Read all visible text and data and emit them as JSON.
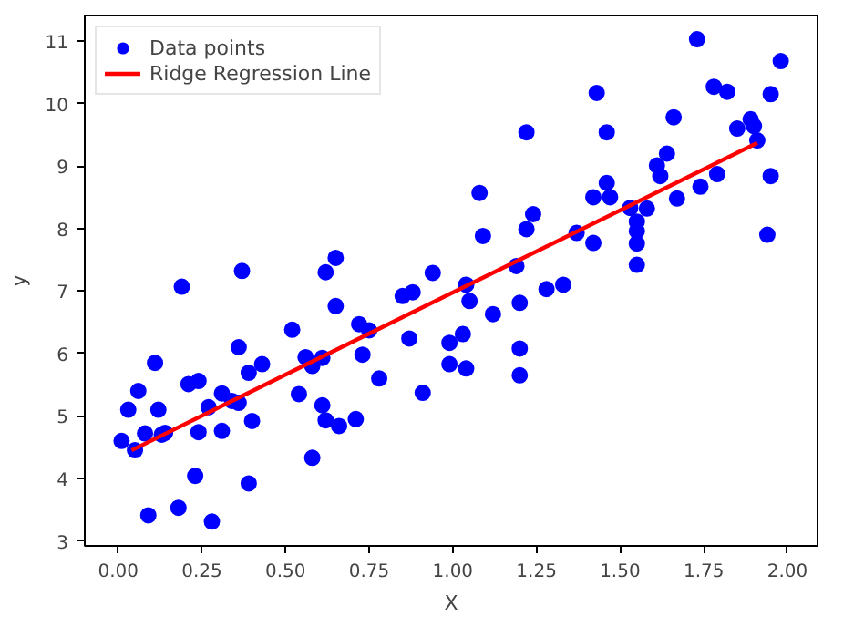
{
  "chart_data": {
    "type": "scatter",
    "xlabel": "X",
    "ylabel": "y",
    "xlim": [
      -0.1,
      2.09
    ],
    "ylim": [
      2.92,
      11.41
    ],
    "xticks": [
      {
        "value": 0,
        "label": "0.00"
      },
      {
        "value": 0.25,
        "label": "0.25"
      },
      {
        "value": 0.5,
        "label": "0.50"
      },
      {
        "value": 0.75,
        "label": "0.75"
      },
      {
        "value": 1,
        "label": "1.00"
      },
      {
        "value": 1.25,
        "label": "1.25"
      },
      {
        "value": 1.5,
        "label": "1.50"
      },
      {
        "value": 1.75,
        "label": "1.75"
      },
      {
        "value": 2,
        "label": "2.00"
      }
    ],
    "yticks": [
      3,
      4,
      5,
      6,
      7,
      8,
      9,
      10,
      11
    ],
    "legend": "top left",
    "grid": false,
    "series": [
      {
        "name": "Data points",
        "marker": "circle",
        "color": "#0000ff",
        "x": [
          0.01,
          0.03,
          0.05,
          0.06,
          0.08,
          0.09,
          0.11,
          0.12,
          0.13,
          0.14,
          0.18,
          0.19,
          0.21,
          0.23,
          0.24,
          0.24,
          0.27,
          0.28,
          0.31,
          0.31,
          0.34,
          0.36,
          0.36,
          0.37,
          0.39,
          0.39,
          0.4,
          0.43,
          0.52,
          0.54,
          0.56,
          0.58,
          0.58,
          0.61,
          0.61,
          0.62,
          0.62,
          0.65,
          0.65,
          0.66,
          0.71,
          0.72,
          0.73,
          0.75,
          0.78,
          0.85,
          0.87,
          0.88,
          0.91,
          0.94,
          0.99,
          0.99,
          1.03,
          1.04,
          1.04,
          1.05,
          1.08,
          1.09,
          1.12,
          1.19,
          1.2,
          1.2,
          1.2,
          1.22,
          1.22,
          1.24,
          1.28,
          1.33,
          1.37,
          1.42,
          1.42,
          1.43,
          1.46,
          1.46,
          1.47,
          1.53,
          1.55,
          1.55,
          1.55,
          1.55,
          1.58,
          1.61,
          1.62,
          1.64,
          1.66,
          1.67,
          1.73,
          1.74,
          1.78,
          1.79,
          1.82,
          1.85,
          1.89,
          1.9,
          1.91,
          1.94,
          1.95,
          1.95,
          1.98
        ],
        "values": [
          4.6,
          5.1,
          4.45,
          5.4,
          4.72,
          3.41,
          5.85,
          5.1,
          4.7,
          4.73,
          3.53,
          7.07,
          5.51,
          4.04,
          5.56,
          4.74,
          5.14,
          3.31,
          5.36,
          4.76,
          5.24,
          5.21,
          6.1,
          7.32,
          5.69,
          3.92,
          4.92,
          5.83,
          6.38,
          5.35,
          5.94,
          5.8,
          4.33,
          5.93,
          5.17,
          4.93,
          7.3,
          6.76,
          7.53,
          4.84,
          4.95,
          6.47,
          5.98,
          6.37,
          5.6,
          6.92,
          6.24,
          6.98,
          5.37,
          7.29,
          6.17,
          5.83,
          6.31,
          5.76,
          7.1,
          6.84,
          8.57,
          7.88,
          6.63,
          7.4,
          6.81,
          6.08,
          5.65,
          9.54,
          7.99,
          8.23,
          7.03,
          7.1,
          7.93,
          7.77,
          8.5,
          10.17,
          8.73,
          9.54,
          8.5,
          8.33,
          7.96,
          7.76,
          7.42,
          8.11,
          8.32,
          9.01,
          8.84,
          9.2,
          9.78,
          8.48,
          11.03,
          8.67,
          10.27,
          8.87,
          10.19,
          9.6,
          9.75,
          9.64,
          9.41,
          7.9,
          10.15,
          8.84,
          10.68
        ]
      },
      {
        "name": "Ridge Regression Line",
        "type": "line",
        "line_style": "solid",
        "color": "#ff0000",
        "x": [
          0.04,
          1.91
        ],
        "values": [
          4.45,
          9.37
        ]
      }
    ]
  }
}
